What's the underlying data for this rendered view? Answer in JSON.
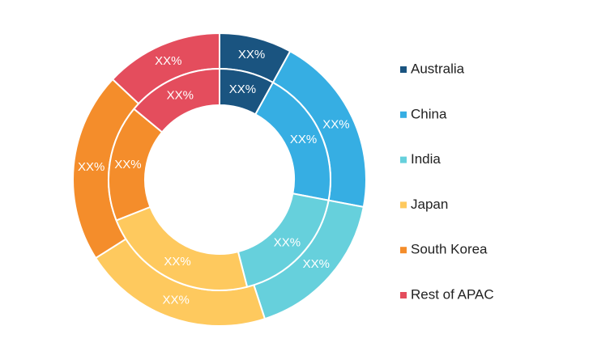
{
  "chart_data": {
    "type": "donut",
    "categories": [
      "Australia",
      "China",
      "India",
      "Japan",
      "South Korea",
      "Rest of APAC"
    ],
    "colors": [
      "#1a5480",
      "#36aee3",
      "#66d0dc",
      "#fec95e",
      "#f48d2b",
      "#e44d5d"
    ],
    "series": [
      {
        "values": [
          8,
          20,
          17,
          21,
          21,
          13
        ],
        "value_labels": [
          "XX%",
          "XX%",
          "XX%",
          "XX%",
          "XX%",
          "XX%"
        ]
      },
      {
        "values": [
          8,
          20,
          18,
          23,
          17,
          14
        ],
        "value_labels": [
          "XX%",
          "XX%",
          "XX%",
          "XX%",
          "XX%",
          "XX%"
        ]
      }
    ]
  }
}
